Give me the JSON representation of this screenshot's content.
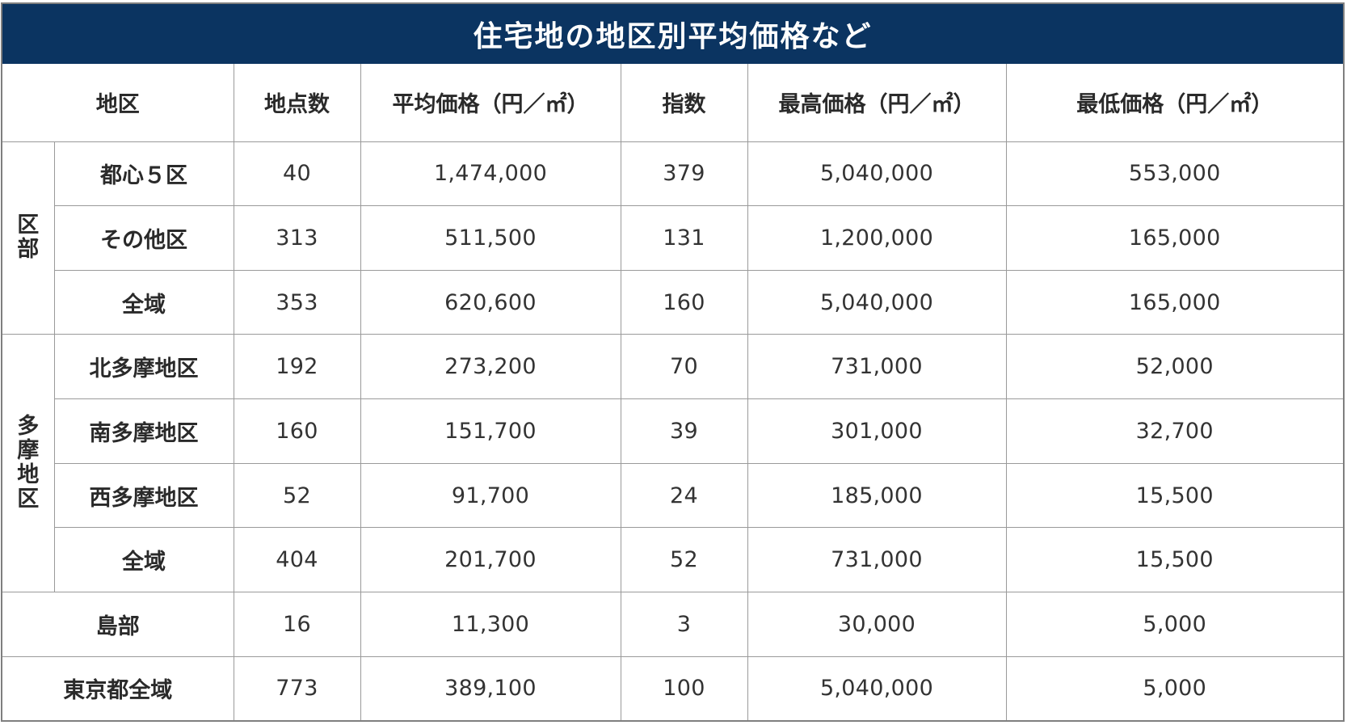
{
  "title": "住宅地の地区別平均価格など",
  "headers": [
    "地区",
    "地点数",
    "平均価格（円／㎡）",
    "指数",
    "最高価格（円／㎡）",
    "最低価格（円／㎡）"
  ],
  "groups": [
    {
      "label_chars": [
        "区",
        "部"
      ],
      "rows": [
        {
          "area": "都心５区",
          "points": "40",
          "avg": "1,474,000",
          "index": "379",
          "max": "5,040,000",
          "min": "553,000"
        },
        {
          "area": "その他区",
          "points": "313",
          "avg": "511,500",
          "index": "131",
          "max": "1,200,000",
          "min": "165,000"
        },
        {
          "area": "全域",
          "points": "353",
          "avg": "620,600",
          "index": "160",
          "max": "5,040,000",
          "min": "165,000"
        }
      ]
    },
    {
      "label_chars": [
        "多",
        "摩",
        "地",
        "区"
      ],
      "rows": [
        {
          "area": "北多摩地区",
          "points": "192",
          "avg": "273,200",
          "index": "70",
          "max": "731,000",
          "min": "52,000"
        },
        {
          "area": "南多摩地区",
          "points": "160",
          "avg": "151,700",
          "index": "39",
          "max": "301,000",
          "min": "32,700"
        },
        {
          "area": "西多摩地区",
          "points": "52",
          "avg": "91,700",
          "index": "24",
          "max": "185,000",
          "min": "15,500"
        },
        {
          "area": "全域",
          "points": "404",
          "avg": "201,700",
          "index": "52",
          "max": "731,000",
          "min": "15,500"
        }
      ]
    }
  ],
  "single_rows": [
    {
      "area": "島部",
      "points": "16",
      "avg": "11,300",
      "index": "3",
      "max": "30,000",
      "min": "5,000"
    },
    {
      "area": "東京都全域",
      "points": "773",
      "avg": "389,100",
      "index": "100",
      "max": "5,040,000",
      "min": "5,000"
    }
  ],
  "colors": {
    "title_bg": "#0b3461",
    "title_text": "#ffffff",
    "grid": "#9a9a9a",
    "outer_border": "#7f7f7f"
  }
}
